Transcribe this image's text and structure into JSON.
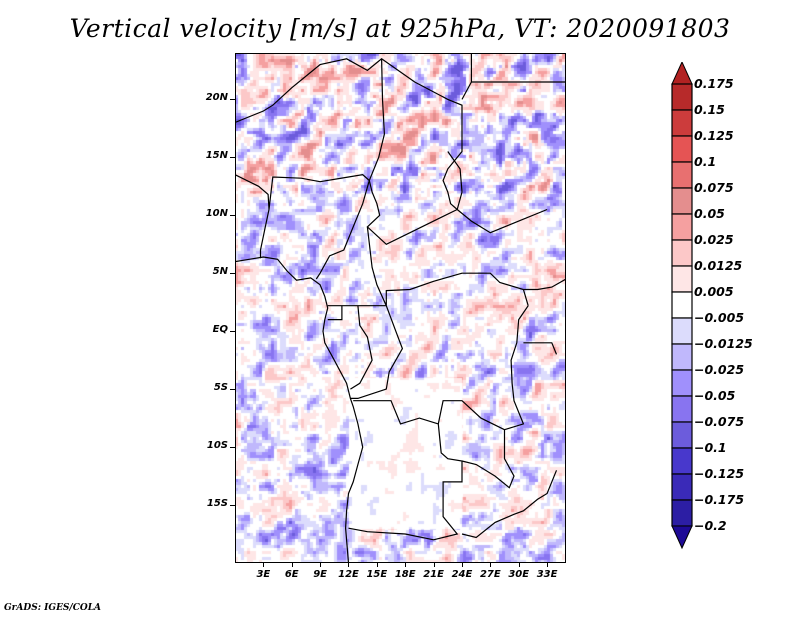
{
  "title": "Vertical velocity [m/s] at 925hPa, VT: 2020091803",
  "footer": "GrADS: IGES/COLA",
  "map": {
    "variable": "Vertical velocity",
    "units": "m/s",
    "level": "925hPa",
    "valid_time": "2020091803",
    "lon_range": [
      0,
      35
    ],
    "lat_range": [
      -20,
      24
    ],
    "lat_ticks": [
      {
        "value": 20,
        "label": "20N"
      },
      {
        "value": 15,
        "label": "15N"
      },
      {
        "value": 10,
        "label": "10N"
      },
      {
        "value": 5,
        "label": "5N"
      },
      {
        "value": 0,
        "label": "EQ"
      },
      {
        "value": -5,
        "label": "5S"
      },
      {
        "value": -10,
        "label": "10S"
      },
      {
        "value": -15,
        "label": "15S"
      }
    ],
    "lon_ticks": [
      {
        "value": 3,
        "label": "3E"
      },
      {
        "value": 6,
        "label": "6E"
      },
      {
        "value": 9,
        "label": "9E"
      },
      {
        "value": 12,
        "label": "12E"
      },
      {
        "value": 15,
        "label": "15E"
      },
      {
        "value": 18,
        "label": "18E"
      },
      {
        "value": 21,
        "label": "21E"
      },
      {
        "value": 24,
        "label": "24E"
      },
      {
        "value": 27,
        "label": "27E"
      },
      {
        "value": 30,
        "label": "30E"
      },
      {
        "value": 33,
        "label": "33E"
      }
    ]
  },
  "colorbar": {
    "labels": [
      "0.175",
      "0.15",
      "0.125",
      "0.1",
      "0.075",
      "0.05",
      "0.025",
      "0.0125",
      "0.005",
      "−0.005",
      "−0.0125",
      "−0.025",
      "−0.05",
      "−0.075",
      "−0.1",
      "−0.125",
      "−0.175",
      "−0.2"
    ],
    "colors_top_to_bottom": [
      "#b22222",
      "#b72a2a",
      "#cc3c3c",
      "#e55454",
      "#e87070",
      "#e48e8e",
      "#f5a0a0",
      "#fcc8c8",
      "#fee6e6",
      "#ffffff",
      "#dcdcfc",
      "#c0b8fc",
      "#a090fc",
      "#8874f0",
      "#6c5cdc",
      "#4838cc",
      "#3a2ab8",
      "#2c1ea4",
      "#1e0a96"
    ]
  }
}
